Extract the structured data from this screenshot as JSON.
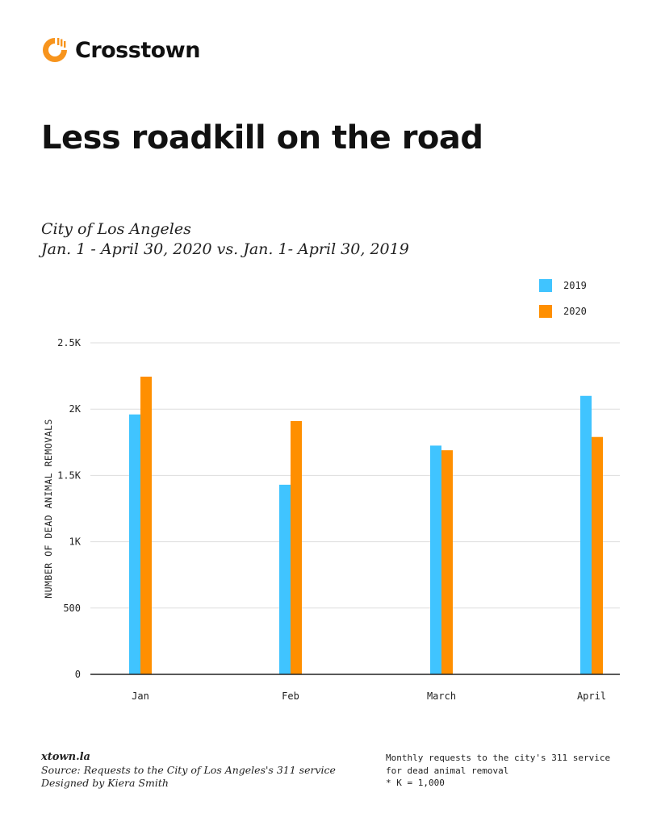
{
  "brand": {
    "name": "Crosstown",
    "accent": "#f7941d"
  },
  "header": {
    "title": "Less roadkill on the road",
    "subtitle_line1": "City of Los Angeles",
    "subtitle_line2": "Jan. 1 - April 30, 2020 vs. Jan. 1- April 30, 2019"
  },
  "legend": [
    {
      "label": "2019",
      "color": "#40c4ff"
    },
    {
      "label": "2020",
      "color": "#ff8f00"
    }
  ],
  "chart_data": {
    "type": "bar",
    "title": "Less roadkill on the road",
    "xlabel": "",
    "ylabel": "NUMBER OF DEAD ANIMAL REMOVALS",
    "categories": [
      "Jan",
      "Feb",
      "March",
      "April"
    ],
    "series": [
      {
        "name": "2019",
        "color": "#40c4ff",
        "values": [
          1960,
          1430,
          1725,
          2100
        ]
      },
      {
        "name": "2020",
        "color": "#ff8f00",
        "values": [
          2245,
          1910,
          1690,
          1790
        ]
      }
    ],
    "ylim": [
      0,
      2500
    ],
    "yticks": [
      {
        "value": 0,
        "label": "0"
      },
      {
        "value": 500,
        "label": "500"
      },
      {
        "value": 1000,
        "label": "1K"
      },
      {
        "value": 1500,
        "label": "1.5K"
      },
      {
        "value": 2000,
        "label": "2K"
      },
      {
        "value": 2500,
        "label": "2.5K"
      }
    ],
    "grid": true,
    "legend_position": "top-right"
  },
  "footer": {
    "site": "xtown.la",
    "source": "Source: Requests to the City of Los Angeles's 311 service",
    "credit": "Designed by Kiera Smith",
    "note_line1": "Monthly requests to the city's 311 service",
    "note_line2": "for dead animal removal",
    "note_line3": "* K = 1,000"
  }
}
